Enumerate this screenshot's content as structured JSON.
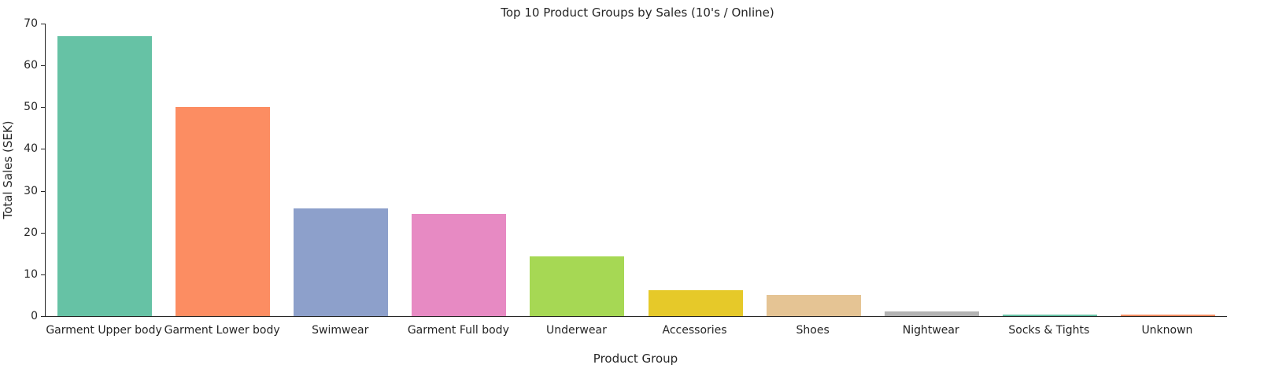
{
  "chart_data": {
    "type": "bar",
    "title": "Top 10 Product Groups by Sales (10's / Online)",
    "xlabel": "Product Group",
    "ylabel": "Total Sales (SEK)",
    "categories": [
      "Garment Upper body",
      "Garment Lower body",
      "Swimwear",
      "Garment Full body",
      "Underwear",
      "Accessories",
      "Shoes",
      "Nightwear",
      "Socks & Tights",
      "Unknown"
    ],
    "values": [
      67,
      50,
      25.8,
      24.5,
      14.3,
      6.2,
      5.0,
      1.1,
      0.3,
      0.3
    ],
    "bar_colors": [
      "#66c2a5",
      "#fc8d62",
      "#8da0cb",
      "#e78ac3",
      "#a6d854",
      "#e6c929",
      "#e5c494",
      "#b3b3b3",
      "#66c2a5",
      "#fc8d62"
    ],
    "ylim": [
      0,
      70
    ],
    "yticks": [
      0,
      10,
      20,
      30,
      40,
      50,
      60,
      70
    ],
    "grid": false,
    "legend": "none",
    "text_color": "#262626",
    "background_color": "#ffffff"
  }
}
